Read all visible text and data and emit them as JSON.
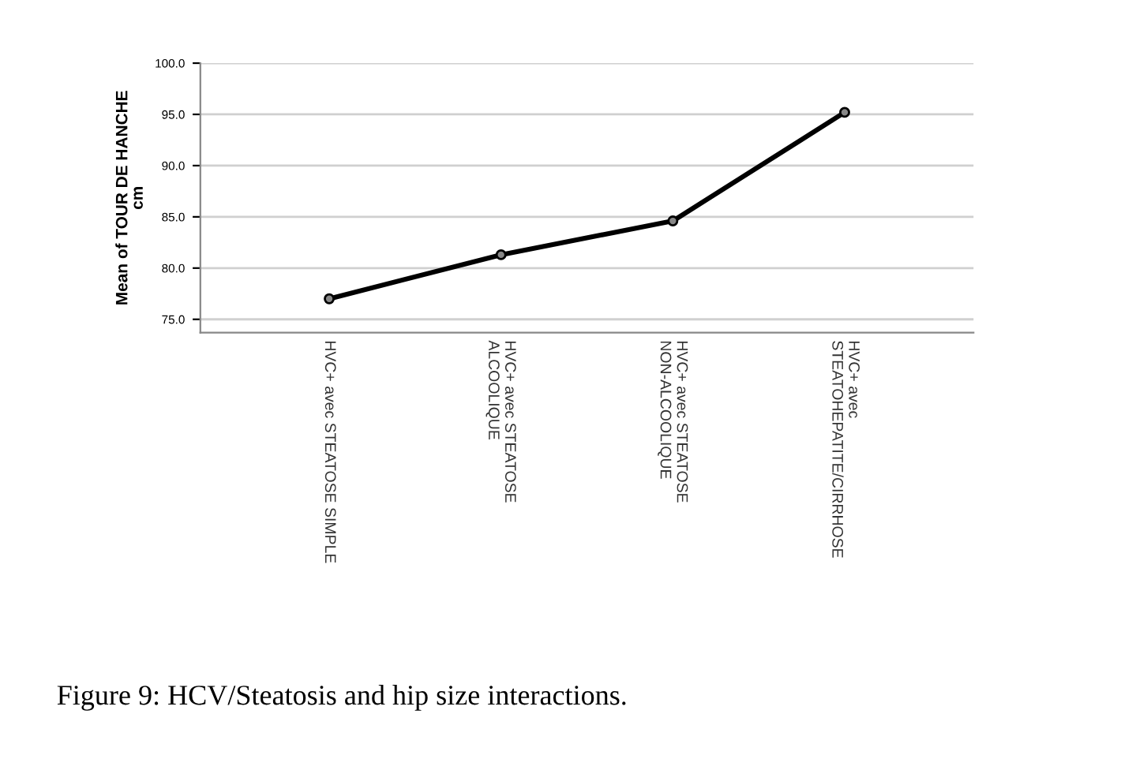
{
  "chart_data": {
    "type": "line",
    "ylabel": "Mean of TOUR DE HANCHE\ncm",
    "categories": [
      "HVC+ avec STEATOSE SIMPLE",
      "HVC+ avec STEATOSE\nALCOOLIQUE",
      "HVC+ avec STEATOSE\nNON-ALCOOLIQUE",
      "HVC+ avec\nSTEATOHEPATITE/CIRRHOSE"
    ],
    "series": [
      {
        "color": "#000000",
        "values": [
          77.0,
          81.3,
          84.6,
          95.2
        ]
      }
    ],
    "ylim": [
      73.7,
      100.0
    ],
    "yticks": [
      {
        "value": 75,
        "label": "75.0"
      },
      {
        "value": 80,
        "label": "80.0"
      },
      {
        "value": 85,
        "label": "85.0"
      },
      {
        "value": 90,
        "label": "90.0"
      },
      {
        "value": 95,
        "label": "95.0"
      },
      {
        "value": 100,
        "label": "100.0"
      }
    ],
    "grid": "y",
    "marker": "circle",
    "line_style": "solid",
    "annotations": [
      "Figure 9: HCV/Steatosis and hip size interactions."
    ]
  }
}
